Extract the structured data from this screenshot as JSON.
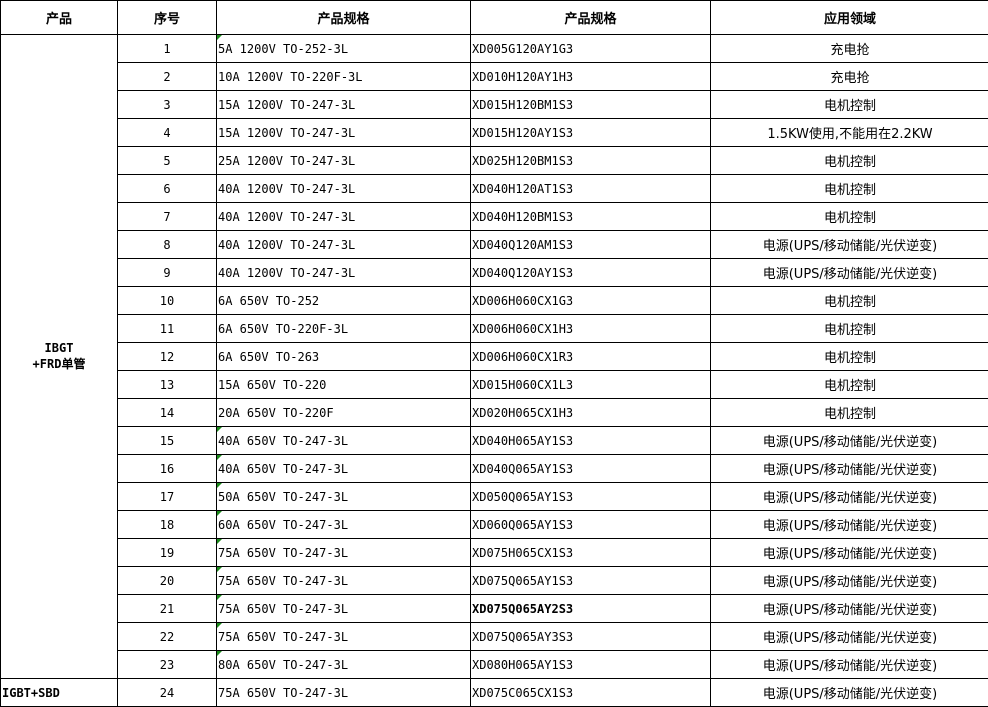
{
  "headers": [
    "产品",
    "序号",
    "产品规格",
    "产品规格",
    "应用领域"
  ],
  "groups": [
    {
      "product": "IBGT\n+FRD单管",
      "product_line1": "IBGT",
      "product_line2": "+FRD单管",
      "rows": 23
    },
    {
      "product": "IGBT+SBD",
      "rows": 1
    }
  ],
  "rows": [
    {
      "no": "1",
      "spec": "5A 1200V TO-252-3L",
      "model": "XD005G120AY1G3",
      "app": "充电抢",
      "mark": true
    },
    {
      "no": "2",
      "spec": "10A 1200V TO-220F-3L",
      "model": "XD010H120AY1H3",
      "app": "充电抢",
      "mark": false
    },
    {
      "no": "3",
      "spec": "15A 1200V TO-247-3L",
      "model": "XD015H120BM1S3",
      "app": "电机控制",
      "mark": false
    },
    {
      "no": "4",
      "spec": "15A 1200V TO-247-3L",
      "model": "XD015H120AY1S3",
      "app": "1.5KW使用,不能用在2.2KW",
      "mark": false
    },
    {
      "no": "5",
      "spec": "25A 1200V TO-247-3L",
      "model": "XD025H120BM1S3",
      "app": "电机控制",
      "mark": false
    },
    {
      "no": "6",
      "spec": "40A 1200V TO-247-3L",
      "model": "XD040H120AT1S3",
      "app": "电机控制",
      "mark": false
    },
    {
      "no": "7",
      "spec": "40A 1200V TO-247-3L",
      "model": "XD040H120BM1S3",
      "app": "电机控制",
      "mark": false
    },
    {
      "no": "8",
      "spec": "40A 1200V TO-247-3L",
      "model": "XD040Q120AM1S3",
      "app": "电源(UPS/移动储能/光伏逆变)",
      "mark": false
    },
    {
      "no": "9",
      "spec": "40A 1200V TO-247-3L",
      "model": "XD040Q120AY1S3",
      "app": "电源(UPS/移动储能/光伏逆变)",
      "mark": false
    },
    {
      "no": "10",
      "spec": "6A 650V TO-252",
      "model": "XD006H060CX1G3",
      "app": "电机控制",
      "mark": false
    },
    {
      "no": "11",
      "spec": "6A 650V TO-220F-3L",
      "model": "XD006H060CX1H3",
      "app": "电机控制",
      "mark": false
    },
    {
      "no": "12",
      "spec": "6A 650V TO-263",
      "model": "XD006H060CX1R3",
      "app": "电机控制",
      "mark": false
    },
    {
      "no": "13",
      "spec": "15A 650V TO-220",
      "model": "XD015H060CX1L3",
      "app": "电机控制",
      "mark": false
    },
    {
      "no": "14",
      "spec": "20A 650V TO-220F",
      "model": "XD020H065CX1H3",
      "app": "电机控制",
      "mark": false
    },
    {
      "no": "15",
      "spec": "40A 650V TO-247-3L",
      "model": "XD040H065AY1S3",
      "app": "电源(UPS/移动储能/光伏逆变)",
      "mark": true
    },
    {
      "no": "16",
      "spec": "40A 650V TO-247-3L",
      "model": "XD040Q065AY1S3",
      "app": "电源(UPS/移动储能/光伏逆变)",
      "mark": true
    },
    {
      "no": "17",
      "spec": "50A 650V TO-247-3L",
      "model": "XD050Q065AY1S3",
      "app": "电源(UPS/移动储能/光伏逆变)",
      "mark": true
    },
    {
      "no": "18",
      "spec": "60A 650V TO-247-3L",
      "model": "XD060Q065AY1S3",
      "app": "电源(UPS/移动储能/光伏逆变)",
      "mark": true
    },
    {
      "no": "19",
      "spec": "75A 650V TO-247-3L",
      "model": "XD075H065CX1S3",
      "app": "电源(UPS/移动储能/光伏逆变)",
      "mark": true
    },
    {
      "no": "20",
      "spec": "75A 650V TO-247-3L",
      "model": "XD075Q065AY1S3",
      "app": "电源(UPS/移动储能/光伏逆变)",
      "mark": true
    },
    {
      "no": "21",
      "spec": "75A 650V TO-247-3L",
      "model": "XD075Q065AY2S3",
      "app": "电源(UPS/移动储能/光伏逆变)",
      "mark": true,
      "bold": true
    },
    {
      "no": "22",
      "spec": "75A 650V TO-247-3L",
      "model": "XD075Q065AY3S3",
      "app": "电源(UPS/移动储能/光伏逆变)",
      "mark": true
    },
    {
      "no": "23",
      "spec": "80A 650V TO-247-3L",
      "model": "XD080H065AY1S3",
      "app": "电源(UPS/移动储能/光伏逆变)",
      "mark": true
    },
    {
      "no": "24",
      "spec": "75A 650V TO-247-3L",
      "model": "XD075C065CX1S3",
      "app": "电源(UPS/移动储能/光伏逆变)",
      "mark": false
    }
  ],
  "colors": {
    "border": "#000000",
    "comment_marker": "#1a8a1a"
  }
}
